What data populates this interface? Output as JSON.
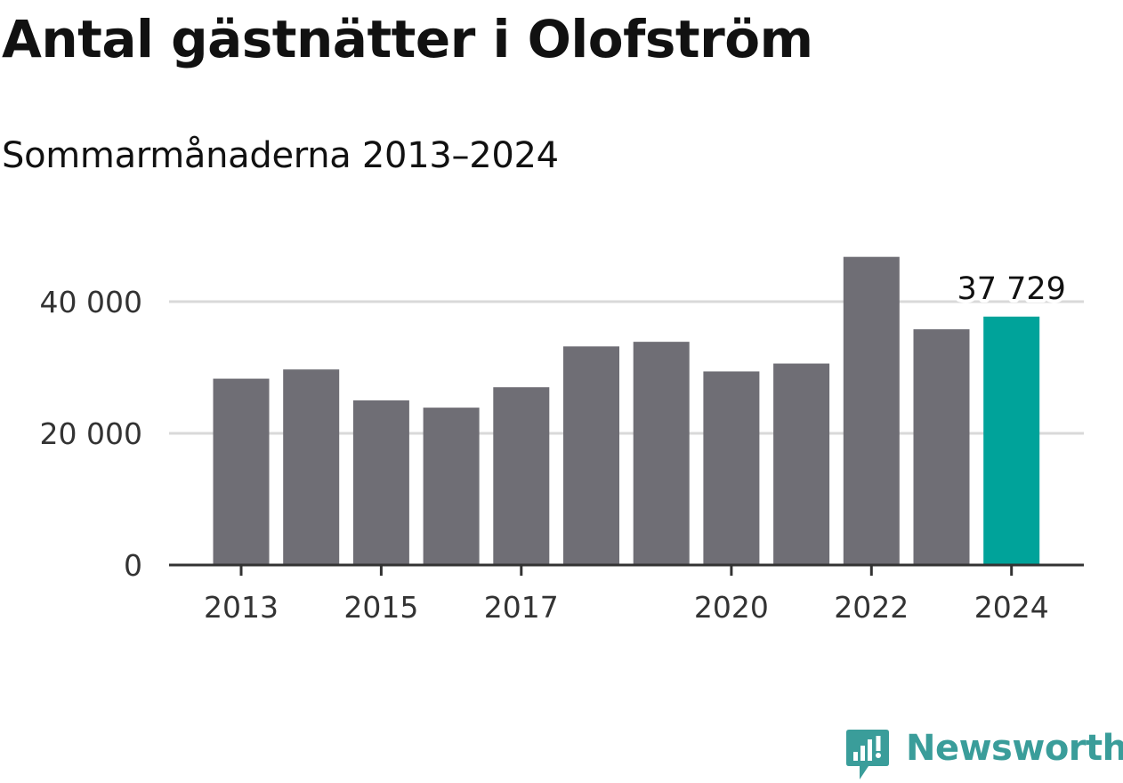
{
  "header": {
    "title": "Antal gästnätter i Olofström",
    "subtitle": "Sommarmånaderna 2013–2024"
  },
  "brand": {
    "name": "Newsworthy",
    "color": "#3a9d9a"
  },
  "colors": {
    "bar": "#6f6e75",
    "highlight": "#00a39a",
    "grid": "#d9d9d9",
    "axis": "#333333"
  },
  "chart_data": {
    "type": "bar",
    "title": "Antal gästnätter i Olofström",
    "subtitle": "Sommarmånaderna 2013–2024",
    "xlabel": "",
    "ylabel": "",
    "categories": [
      "2013",
      "2014",
      "2015",
      "2016",
      "2017",
      "2018",
      "2019",
      "2020",
      "2021",
      "2022",
      "2023",
      "2024"
    ],
    "values": [
      28300,
      29700,
      25000,
      23900,
      27000,
      33200,
      33900,
      29400,
      30600,
      46800,
      35800,
      37729
    ],
    "highlight_index": 11,
    "data_labels": [
      {
        "category": "2024",
        "text": "37 729"
      }
    ],
    "x_tick_labels": [
      "2013",
      "2015",
      "2017",
      "2020",
      "2022",
      "2024"
    ],
    "y_ticks": [
      0,
      20000,
      40000
    ],
    "y_tick_labels": [
      "0",
      "20 000",
      "40 000"
    ],
    "ylim": [
      0,
      50000
    ],
    "grid": true,
    "legend": "none"
  }
}
